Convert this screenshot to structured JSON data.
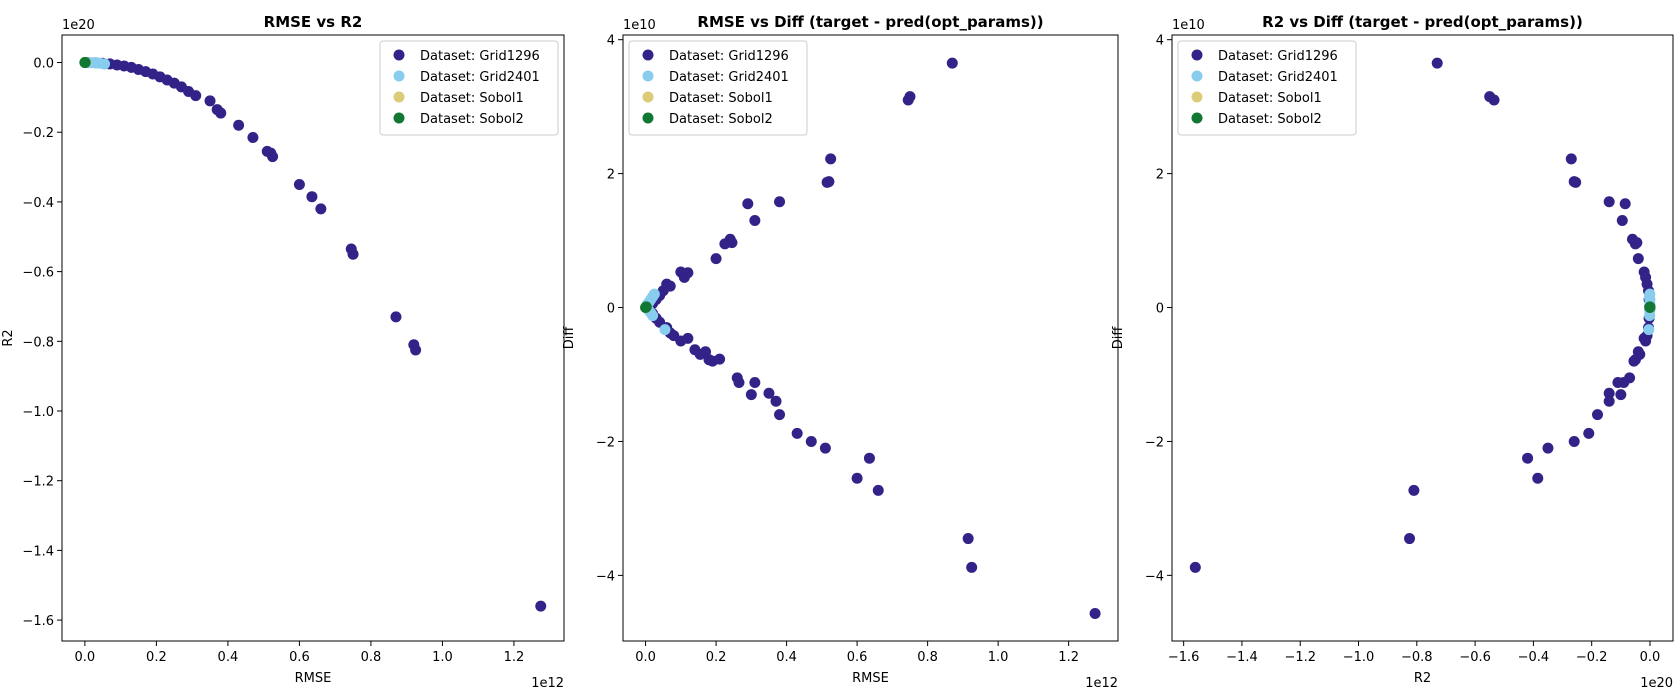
{
  "colors": {
    "Grid1296": "#332288",
    "Grid2401": "#88CCEE",
    "Sobol1": "#DDCC77",
    "Sobol2": "#117733"
  },
  "legend_labels": [
    "Dataset: Grid1296",
    "Dataset: Grid2401",
    "Dataset: Sobol1",
    "Dataset: Sobol2"
  ],
  "chart_data": [
    {
      "type": "scatter",
      "title": "RMSE vs R2",
      "xlabel": "RMSE",
      "ylabel": "R2",
      "x_exponent": "1e12",
      "y_exponent": "1e20",
      "x_unit": 1000000000000.0,
      "y_unit": 1e+20,
      "xlim": [
        -0.064,
        1.34
      ],
      "ylim": [
        -1.66,
        0.079
      ],
      "xticks": [
        0.0,
        0.2,
        0.4,
        0.6,
        0.8,
        1.0,
        1.2
      ],
      "xtick_labels": [
        "0.0",
        "0.2",
        "0.4",
        "0.6",
        "0.8",
        "1.0",
        "1.2"
      ],
      "yticks": [
        0.0,
        -0.2,
        -0.4,
        -0.6,
        -0.8,
        -1.0,
        -1.2,
        -1.4,
        -1.6
      ],
      "ytick_labels": [
        "0.0",
        "−0.2",
        "−0.4",
        "−0.6",
        "−0.8",
        "−1.0",
        "−1.2",
        "−1.4",
        "−1.6"
      ],
      "legend_position": "upper right",
      "series": [
        {
          "name": "Dataset: Grid1296",
          "key": "Grid1296",
          "x": [
            0.01,
            0.03,
            0.05,
            0.07,
            0.09,
            0.11,
            0.13,
            0.15,
            0.17,
            0.19,
            0.21,
            0.23,
            0.25,
            0.27,
            0.29,
            0.31,
            0.35,
            0.37,
            0.38,
            0.43,
            0.47,
            0.51,
            0.52,
            0.525,
            0.6,
            0.635,
            0.66,
            0.745,
            0.75,
            0.87,
            0.92,
            0.925,
            1.275
          ],
          "y": [
            -0.0001,
            -0.0007,
            -0.002,
            -0.004,
            -0.007,
            -0.01,
            -0.014,
            -0.02,
            -0.026,
            -0.033,
            -0.041,
            -0.05,
            -0.059,
            -0.07,
            -0.083,
            -0.095,
            -0.11,
            -0.135,
            -0.145,
            -0.18,
            -0.215,
            -0.255,
            -0.26,
            -0.27,
            -0.35,
            -0.385,
            -0.42,
            -0.535,
            -0.55,
            -0.73,
            -0.81,
            -0.825,
            -1.56
          ]
        },
        {
          "name": "Dataset: Grid2401",
          "key": "Grid2401",
          "x": [
            0.005,
            0.012,
            0.02,
            0.028,
            0.035,
            0.042,
            0.055
          ],
          "y": [
            -0.0001,
            -0.0003,
            -0.0005,
            -0.0008,
            -0.0012,
            -0.002,
            -0.004
          ]
        },
        {
          "name": "Dataset: Sobol1",
          "key": "Sobol1",
          "x": [
            0.0,
            0.002
          ],
          "y": [
            0.0,
            0.0
          ]
        },
        {
          "name": "Dataset: Sobol2",
          "key": "Sobol2",
          "x": [
            0.0,
            0.001
          ],
          "y": [
            0.0,
            0.0
          ]
        }
      ]
    },
    {
      "type": "scatter",
      "title": "RMSE vs Diff (target - pred(opt_params))",
      "xlabel": "RMSE",
      "ylabel": "Diff",
      "x_exponent": "1e12",
      "y_exponent": "1e10",
      "x_unit": 1000000000000.0,
      "y_unit": 10000000000.0,
      "xlim": [
        -0.064,
        1.34
      ],
      "ylim": [
        -4.98,
        4.07
      ],
      "xticks": [
        0.0,
        0.2,
        0.4,
        0.6,
        0.8,
        1.0,
        1.2
      ],
      "xtick_labels": [
        "0.0",
        "0.2",
        "0.4",
        "0.6",
        "0.8",
        "1.0",
        "1.2"
      ],
      "yticks": [
        4,
        2,
        0,
        -2,
        -4
      ],
      "ytick_labels": [
        "4",
        "2",
        "0",
        "−2",
        "−4"
      ],
      "legend_position": "upper left",
      "series": [
        {
          "name": "Dataset: Grid1296",
          "key": "Grid1296",
          "x": [
            0.87,
            0.745,
            0.75,
            0.525,
            0.515,
            0.52,
            0.29,
            0.38,
            0.31,
            0.24,
            0.225,
            0.245,
            0.2,
            0.1,
            0.12,
            0.11,
            0.06,
            0.07,
            0.05,
            0.04,
            0.03,
            0.02,
            0.01,
            0.01,
            0.02,
            0.03,
            0.04,
            0.06,
            0.07,
            0.08,
            0.1,
            0.12,
            0.14,
            0.155,
            0.17,
            0.18,
            0.19,
            0.21,
            0.26,
            0.265,
            0.3,
            0.31,
            0.35,
            0.37,
            0.38,
            0.43,
            0.47,
            0.51,
            0.6,
            0.635,
            0.66,
            0.915,
            0.925,
            1.275
          ],
          "y": [
            3.65,
            3.1,
            3.15,
            2.22,
            1.87,
            1.88,
            1.55,
            1.58,
            1.3,
            1.02,
            0.95,
            0.97,
            0.73,
            0.53,
            0.52,
            0.45,
            0.35,
            0.32,
            0.25,
            0.18,
            0.12,
            0.06,
            0.02,
            -0.03,
            -0.09,
            -0.16,
            -0.22,
            -0.3,
            -0.38,
            -0.42,
            -0.5,
            -0.46,
            -0.63,
            -0.7,
            -0.66,
            -0.78,
            -0.8,
            -0.77,
            -1.05,
            -1.12,
            -1.3,
            -1.12,
            -1.28,
            -1.4,
            -1.6,
            -1.88,
            -2.0,
            -2.1,
            -2.55,
            -2.25,
            -2.73,
            -3.45,
            -3.88,
            -4.57
          ]
        },
        {
          "name": "Dataset: Grid2401",
          "key": "Grid2401",
          "x": [
            0.005,
            0.01,
            0.015,
            0.02,
            0.025,
            0.01,
            0.015,
            0.02,
            0.055
          ],
          "y": [
            0.05,
            0.08,
            0.12,
            0.16,
            0.2,
            -0.05,
            -0.08,
            -0.12,
            -0.33
          ]
        },
        {
          "name": "Dataset: Sobol1",
          "key": "Sobol1",
          "x": [
            0.001
          ],
          "y": [
            0.0
          ]
        },
        {
          "name": "Dataset: Sobol2",
          "key": "Sobol2",
          "x": [
            0.0,
            0.002
          ],
          "y": [
            0.0,
            0.01
          ]
        }
      ]
    },
    {
      "type": "scatter",
      "title": "R2 vs Diff (target - pred(opt_params))",
      "xlabel": "R2",
      "ylabel": "Diff",
      "x_exponent": "1e20",
      "y_exponent": "1e10",
      "x_unit": 1e+20,
      "y_unit": 10000000000.0,
      "xlim": [
        -1.64,
        0.079
      ],
      "ylim": [
        -4.98,
        4.07
      ],
      "xticks": [
        -1.6,
        -1.4,
        -1.2,
        -1.0,
        -0.8,
        -0.6,
        -0.4,
        -0.2,
        0.0
      ],
      "xtick_labels": [
        "−1.6",
        "−1.4",
        "−1.2",
        "−1.0",
        "−0.8",
        "−0.6",
        "−0.4",
        "−0.2",
        "0.0"
      ],
      "yticks": [
        4,
        2,
        0,
        -2,
        -4
      ],
      "ytick_labels": [
        "4",
        "2",
        "0",
        "−2",
        "−4"
      ],
      "legend_position": "upper left",
      "series": [
        {
          "name": "Dataset: Grid1296",
          "key": "Grid1296",
          "x": [
            -0.73,
            -0.55,
            -0.535,
            -0.27,
            -0.26,
            -0.255,
            -0.14,
            -0.085,
            -0.095,
            -0.06,
            -0.05,
            -0.045,
            -0.04,
            -0.02,
            -0.015,
            -0.01,
            -0.005,
            -0.003,
            -0.001,
            -0.001,
            -0.003,
            -0.005,
            -0.01,
            -0.015,
            -0.02,
            -0.035,
            -0.04,
            -0.05,
            -0.055,
            -0.07,
            -0.09,
            -0.1,
            -0.11,
            -0.14,
            -0.14,
            -0.18,
            -0.21,
            -0.26,
            -0.35,
            -0.385,
            -0.42,
            -0.81,
            -0.825,
            -1.56
          ],
          "y": [
            3.65,
            3.15,
            3.1,
            2.22,
            1.88,
            1.87,
            1.58,
            1.55,
            1.3,
            1.02,
            0.95,
            0.97,
            0.73,
            0.53,
            0.45,
            0.35,
            0.25,
            0.12,
            0.02,
            -0.03,
            -0.16,
            -0.3,
            -0.42,
            -0.5,
            -0.46,
            -0.7,
            -0.66,
            -0.78,
            -0.8,
            -1.05,
            -1.12,
            -1.3,
            -1.12,
            -1.28,
            -1.4,
            -1.6,
            -1.88,
            -2.0,
            -2.1,
            -2.55,
            -2.25,
            -2.73,
            -3.45,
            -3.88
          ]
        },
        {
          "name": "Dataset: Grid2401",
          "key": "Grid2401",
          "x": [
            -0.0001,
            -0.0003,
            -0.0005,
            -0.0008,
            -0.0012,
            -0.002,
            -0.004
          ],
          "y": [
            0.05,
            0.12,
            0.2,
            -0.05,
            -0.12,
            0.16,
            -0.33
          ]
        },
        {
          "name": "Dataset: Sobol1",
          "key": "Sobol1",
          "x": [
            0.0
          ],
          "y": [
            0.0
          ]
        },
        {
          "name": "Dataset: Sobol2",
          "key": "Sobol2",
          "x": [
            0.0,
            -0.0001
          ],
          "y": [
            0.0,
            0.01
          ]
        }
      ]
    }
  ]
}
